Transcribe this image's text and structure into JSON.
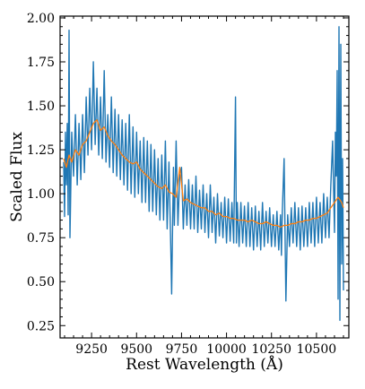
{
  "chart_data": {
    "type": "line",
    "title": "",
    "xlabel": "Rest Wavelength (Å)",
    "ylabel": "Scaled Flux",
    "xlim": [
      9075,
      10680
    ],
    "ylim": [
      0.18,
      2.01
    ],
    "x_ticks": [
      9250,
      9500,
      9750,
      10000,
      10250,
      10500
    ],
    "y_ticks": [
      0.25,
      0.5,
      0.75,
      1.0,
      1.25,
      1.5,
      1.75,
      2.0
    ],
    "x_tick_labels": [
      "9250",
      "9500",
      "9750",
      "10000",
      "10250",
      "10500"
    ],
    "y_tick_labels": [
      "0.25",
      "0.50",
      "0.75",
      "1.00",
      "1.25",
      "1.50",
      "1.75",
      "2.00"
    ],
    "grid": false,
    "ticks_direction": "in",
    "series": [
      {
        "role": "observed spectrum",
        "color": "#1f77b4",
        "x": [
          9095,
          9100,
          9105,
          9110,
          9115,
          9120,
          9125,
          9130,
          9140,
          9150,
          9160,
          9170,
          9180,
          9190,
          9200,
          9210,
          9220,
          9230,
          9240,
          9250,
          9260,
          9270,
          9280,
          9290,
          9300,
          9310,
          9320,
          9330,
          9340,
          9350,
          9360,
          9370,
          9380,
          9390,
          9400,
          9410,
          9420,
          9430,
          9440,
          9450,
          9460,
          9470,
          9480,
          9490,
          9500,
          9510,
          9520,
          9530,
          9540,
          9550,
          9560,
          9570,
          9580,
          9590,
          9600,
          9610,
          9620,
          9630,
          9640,
          9650,
          9660,
          9670,
          9680,
          9690,
          9695,
          9700,
          9705,
          9710,
          9720,
          9730,
          9740,
          9750,
          9760,
          9770,
          9780,
          9790,
          9800,
          9810,
          9820,
          9830,
          9840,
          9850,
          9860,
          9870,
          9880,
          9890,
          9900,
          9910,
          9920,
          9930,
          9940,
          9950,
          9960,
          9970,
          9980,
          9990,
          10000,
          10010,
          10020,
          10030,
          10040,
          10050,
          10055,
          10060,
          10070,
          10080,
          10090,
          10100,
          10110,
          10120,
          10130,
          10140,
          10150,
          10160,
          10170,
          10180,
          10190,
          10200,
          10210,
          10220,
          10230,
          10240,
          10250,
          10260,
          10270,
          10280,
          10290,
          10300,
          10305,
          10310,
          10320,
          10330,
          10340,
          10350,
          10360,
          10370,
          10380,
          10390,
          10400,
          10410,
          10420,
          10430,
          10440,
          10450,
          10460,
          10470,
          10480,
          10490,
          10500,
          10510,
          10520,
          10530,
          10540,
          10550,
          10560,
          10570,
          10580,
          10590,
          10600,
          10605,
          10610,
          10615,
          10620,
          10625,
          10630,
          10635,
          10640,
          10645,
          10650
        ],
        "y": [
          1.18,
          0.87,
          1.35,
          1.05,
          1.4,
          0.88,
          1.93,
          0.75,
          1.35,
          1.1,
          1.45,
          1.05,
          1.4,
          1.08,
          1.45,
          1.12,
          1.55,
          1.22,
          1.6,
          1.25,
          1.75,
          1.28,
          1.6,
          1.22,
          1.55,
          1.2,
          1.7,
          1.18,
          1.45,
          1.15,
          1.55,
          1.12,
          1.48,
          1.1,
          1.45,
          1.08,
          1.42,
          1.05,
          1.4,
          1.02,
          1.45,
          1.0,
          1.38,
          0.98,
          1.35,
          1.0,
          1.3,
          0.95,
          1.32,
          0.95,
          1.3,
          0.9,
          1.28,
          0.9,
          1.25,
          0.88,
          1.2,
          0.85,
          1.22,
          0.85,
          1.3,
          0.8,
          1.18,
          0.7,
          0.43,
          0.8,
          1.15,
          0.82,
          1.3,
          0.82,
          1.1,
          1.15,
          0.8,
          1.05,
          0.82,
          1.08,
          0.8,
          1.05,
          0.8,
          1.1,
          0.78,
          1.02,
          0.8,
          1.05,
          0.78,
          1.0,
          0.75,
          1.05,
          0.78,
          0.98,
          0.72,
          1.0,
          0.76,
          0.95,
          0.75,
          0.98,
          0.72,
          0.97,
          0.73,
          0.95,
          0.72,
          1.55,
          0.72,
          0.95,
          0.7,
          0.95,
          0.72,
          0.93,
          0.7,
          0.95,
          0.7,
          0.92,
          0.68,
          0.93,
          0.7,
          0.9,
          0.68,
          0.95,
          0.7,
          0.9,
          0.72,
          0.92,
          0.7,
          0.88,
          0.7,
          0.9,
          0.68,
          0.88,
          0.65,
          0.9,
          1.2,
          0.39,
          0.88,
          0.7,
          0.92,
          0.72,
          0.95,
          0.7,
          0.92,
          0.68,
          0.93,
          0.7,
          0.92,
          0.7,
          0.95,
          0.72,
          0.95,
          0.7,
          0.98,
          0.72,
          0.95,
          0.72,
          1.0,
          0.75,
          0.98,
          0.75,
          1.05,
          1.3,
          0.78,
          1.35,
          1.1,
          1.7,
          0.4,
          1.95,
          0.28,
          1.85,
          0.6,
          1.2,
          0.45
        ]
      },
      {
        "role": "smoothed spectrum",
        "color": "#ff7f0e",
        "x": [
          9095,
          9110,
          9125,
          9140,
          9160,
          9180,
          9200,
          9220,
          9240,
          9260,
          9280,
          9300,
          9320,
          9340,
          9360,
          9380,
          9400,
          9420,
          9440,
          9460,
          9480,
          9500,
          9520,
          9540,
          9560,
          9580,
          9600,
          9620,
          9640,
          9660,
          9680,
          9700,
          9720,
          9740,
          9760,
          9780,
          9800,
          9820,
          9840,
          9860,
          9880,
          9900,
          9920,
          9940,
          9960,
          9980,
          10000,
          10020,
          10040,
          10060,
          10080,
          10100,
          10120,
          10140,
          10160,
          10180,
          10200,
          10220,
          10240,
          10260,
          10280,
          10300,
          10320,
          10340,
          10360,
          10380,
          10400,
          10420,
          10440,
          10460,
          10480,
          10500,
          10520,
          10540,
          10560,
          10580,
          10600,
          10620,
          10640,
          10650
        ],
        "y": [
          1.2,
          1.15,
          1.22,
          1.18,
          1.25,
          1.22,
          1.28,
          1.3,
          1.35,
          1.4,
          1.42,
          1.36,
          1.38,
          1.33,
          1.3,
          1.28,
          1.25,
          1.22,
          1.2,
          1.18,
          1.17,
          1.18,
          1.14,
          1.12,
          1.1,
          1.08,
          1.06,
          1.04,
          1.03,
          1.05,
          1.01,
          1.0,
          0.98,
          1.15,
          0.96,
          0.97,
          0.95,
          0.94,
          0.93,
          0.92,
          0.92,
          0.9,
          0.9,
          0.88,
          0.89,
          0.87,
          0.87,
          0.86,
          0.86,
          0.85,
          0.85,
          0.85,
          0.84,
          0.85,
          0.84,
          0.83,
          0.83,
          0.84,
          0.83,
          0.82,
          0.82,
          0.81,
          0.82,
          0.82,
          0.83,
          0.83,
          0.84,
          0.84,
          0.85,
          0.85,
          0.86,
          0.86,
          0.87,
          0.88,
          0.89,
          0.92,
          0.95,
          0.98,
          0.95,
          0.92
        ]
      }
    ]
  }
}
